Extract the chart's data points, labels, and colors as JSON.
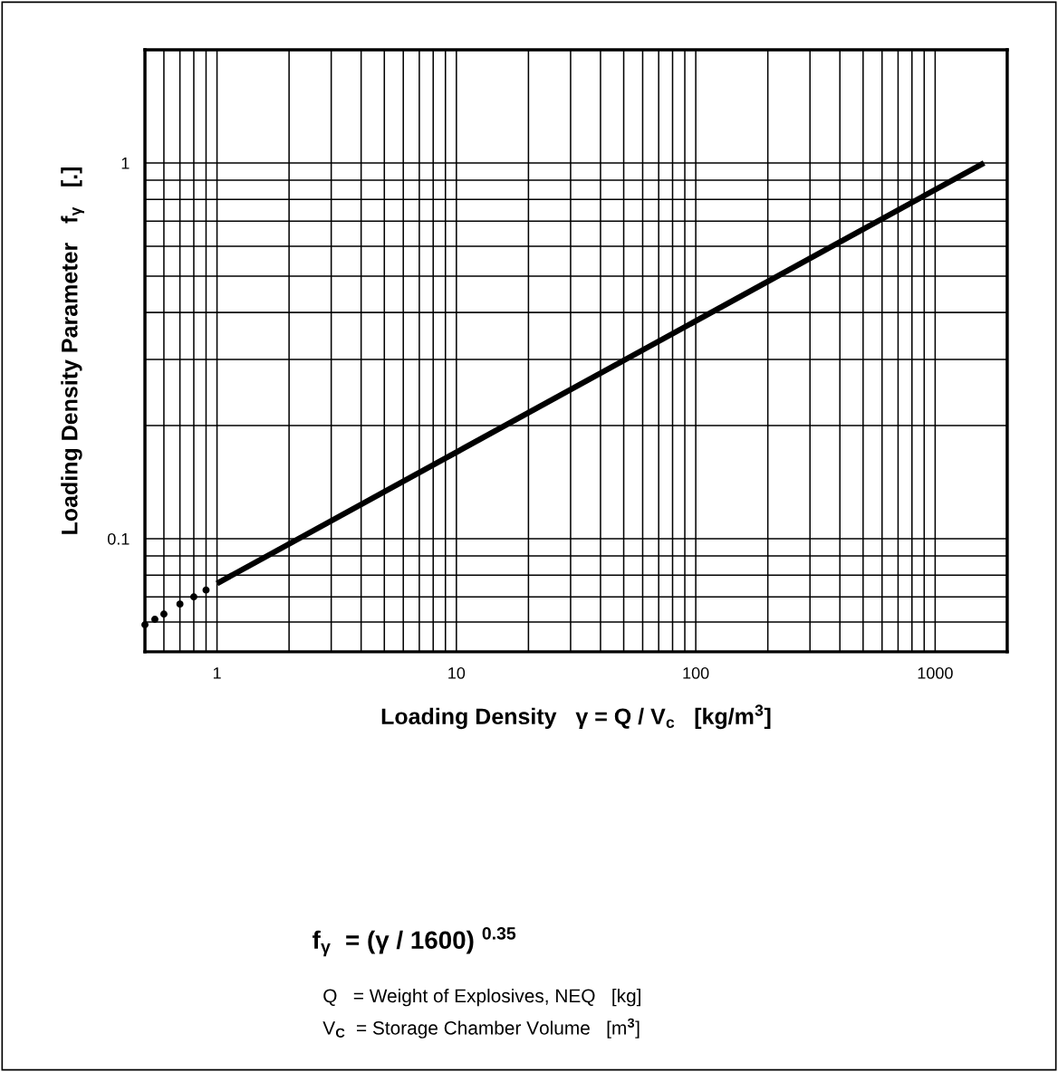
{
  "chart_data": {
    "type": "line",
    "xlabel": "Loading Density   γ = Q / V$_{c}$   [kg/m$^{3}$]",
    "ylabel": "Loading Density Parameter   f$_{γ}$   [.]",
    "annotations": [
      "f$_{γ}$  = (γ / 1600) $^{0.35}$",
      "Q   = Weight of Explosives, NEQ   [kg]",
      "V$_{C}$  = Storage Chamber Volume   [m$^{3}$]"
    ],
    "log": "xy",
    "grid": true,
    "xlim": [
      0.5,
      2000
    ],
    "xticks": [
      1,
      10,
      100,
      1000
    ],
    "ylim": [
      0.05,
      2
    ],
    "yticks": [
      0.1,
      1
    ],
    "series": [
      {
        "color": "#000000",
        "line_style": "solid",
        "x": [
          1,
          1600
        ],
        "values": [
          0.076,
          1
        ]
      },
      {
        "type": "scatter",
        "color": "#000000",
        "marker": "circle",
        "x": [
          0.5,
          0.55,
          0.6,
          0.7,
          0.8,
          0.9
        ],
        "values": [
          0.059,
          0.061,
          0.063,
          0.067,
          0.07,
          0.073
        ]
      }
    ]
  }
}
